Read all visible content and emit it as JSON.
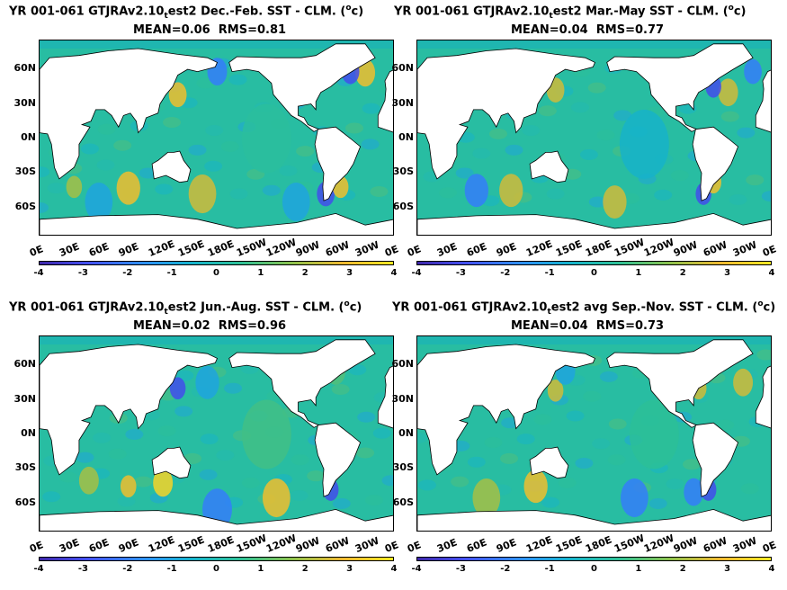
{
  "panels": [
    {
      "title_pre": "YR 001-061 GTJRAv2.10",
      "title_sub": "t",
      "title_post": "est2  Dec.-Feb. SST - CLM. (",
      "title_sup": "o",
      "title_end": "c)",
      "mean_label": "MEAN=0.06",
      "rms_label": "RMS=0.81"
    },
    {
      "title_pre": "YR 001-061 GTJRAv2.10",
      "title_sub": "t",
      "title_post": "est2 Mar.-May SST - CLM. (",
      "title_sup": "o",
      "title_end": "c)",
      "mean_label": "MEAN=0.04",
      "rms_label": "RMS=0.77"
    },
    {
      "title_pre": "YR 001-061 GTJRAv2.10",
      "title_sub": "t",
      "title_post": "est2 Jun.-Aug. SST - CLM. (",
      "title_sup": "o",
      "title_end": "c)",
      "mean_label": "MEAN=0.02",
      "rms_label": "RMS=0.96"
    },
    {
      "title_pre": "YR 001-061 GTJRAv2.10",
      "title_sub": "t",
      "title_post": "est2 avg Sep.-Nov. SST - CLM. (",
      "title_sup": "o",
      "title_end": "c)",
      "mean_label": "MEAN=0.04",
      "rms_label": "RMS=0.73"
    }
  ],
  "lat_ticks": [
    "60N",
    "30N",
    "0N",
    "30S",
    "60S"
  ],
  "lon_ticks": [
    "0E",
    "30E",
    "60E",
    "90E",
    "120E",
    "150E",
    "180E",
    "150W",
    "120W",
    "90W",
    "60W",
    "30W",
    "0E"
  ],
  "colorbar_ticks": [
    "-4",
    "-3",
    "-2",
    "-1",
    "0",
    "1",
    "2",
    "3",
    "4"
  ],
  "colorbar_range": [
    -4,
    4
  ],
  "colors": {
    "ocean_base": "#2aa6a0",
    "land": "#ffffff",
    "arctic": "#1fb6b0",
    "colormap": [
      "#3e26a8",
      "#4352f4",
      "#2f8dfb",
      "#14b2cc",
      "#2ec095",
      "#8cc14c",
      "#eeb830",
      "#f9e822"
    ]
  }
}
